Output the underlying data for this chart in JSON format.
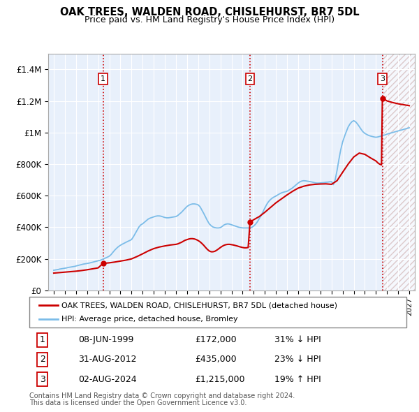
{
  "title": "OAK TREES, WALDEN ROAD, CHISLEHURST, BR7 5DL",
  "subtitle": "Price paid vs. HM Land Registry's House Price Index (HPI)",
  "hpi_label": "HPI: Average price, detached house, Bromley",
  "price_label": "OAK TREES, WALDEN ROAD, CHISLEHURST, BR7 5DL (detached house)",
  "footer1": "Contains HM Land Registry data © Crown copyright and database right 2024.",
  "footer2": "This data is licensed under the Open Government Licence v3.0.",
  "hpi_color": "#7bbce8",
  "price_color": "#cc0000",
  "plot_bg_color": "#e8f0fb",
  "ylim": [
    0,
    1500000
  ],
  "yticks": [
    0,
    200000,
    400000,
    600000,
    800000,
    1000000,
    1200000,
    1400000
  ],
  "ytick_labels": [
    "£0",
    "£200K",
    "£400K",
    "£600K",
    "£800K",
    "£1M",
    "£1.2M",
    "£1.4M"
  ],
  "transactions": [
    {
      "num": 1,
      "date": "08-JUN-1999",
      "date_val": 1999.44,
      "price": 172000,
      "pct": "31%",
      "dir": "↓"
    },
    {
      "num": 2,
      "date": "31-AUG-2012",
      "date_val": 2012.67,
      "price": 435000,
      "pct": "23%",
      "dir": "↓"
    },
    {
      "num": 3,
      "date": "02-AUG-2024",
      "date_val": 2024.58,
      "price": 1215000,
      "pct": "19%",
      "dir": "↑"
    }
  ],
  "hpi_data_x": [
    1995.0,
    1995.08,
    1995.17,
    1995.25,
    1995.33,
    1995.42,
    1995.5,
    1995.58,
    1995.67,
    1995.75,
    1995.83,
    1995.92,
    1996.0,
    1996.08,
    1996.17,
    1996.25,
    1996.33,
    1996.42,
    1996.5,
    1996.58,
    1996.67,
    1996.75,
    1996.83,
    1996.92,
    1997.0,
    1997.17,
    1997.33,
    1997.5,
    1997.67,
    1997.83,
    1998.0,
    1998.17,
    1998.33,
    1998.5,
    1998.67,
    1998.83,
    1999.0,
    1999.17,
    1999.33,
    1999.5,
    1999.67,
    1999.83,
    2000.0,
    2000.17,
    2000.33,
    2000.5,
    2000.67,
    2000.83,
    2001.0,
    2001.17,
    2001.33,
    2001.5,
    2001.67,
    2001.83,
    2002.0,
    2002.17,
    2002.33,
    2002.5,
    2002.67,
    2002.83,
    2003.0,
    2003.17,
    2003.33,
    2003.5,
    2003.67,
    2003.83,
    2004.0,
    2004.17,
    2004.33,
    2004.5,
    2004.67,
    2004.83,
    2005.0,
    2005.17,
    2005.33,
    2005.5,
    2005.67,
    2005.83,
    2006.0,
    2006.17,
    2006.33,
    2006.5,
    2006.67,
    2006.83,
    2007.0,
    2007.17,
    2007.33,
    2007.5,
    2007.67,
    2007.83,
    2008.0,
    2008.17,
    2008.33,
    2008.5,
    2008.67,
    2008.83,
    2009.0,
    2009.17,
    2009.33,
    2009.5,
    2009.67,
    2009.83,
    2010.0,
    2010.17,
    2010.33,
    2010.5,
    2010.67,
    2010.83,
    2011.0,
    2011.17,
    2011.33,
    2011.5,
    2011.67,
    2011.83,
    2012.0,
    2012.17,
    2012.33,
    2012.5,
    2012.67,
    2012.83,
    2013.0,
    2013.17,
    2013.33,
    2013.5,
    2013.67,
    2013.83,
    2014.0,
    2014.17,
    2014.33,
    2014.5,
    2014.67,
    2014.83,
    2015.0,
    2015.17,
    2015.33,
    2015.5,
    2015.67,
    2015.83,
    2016.0,
    2016.17,
    2016.33,
    2016.5,
    2016.67,
    2016.83,
    2017.0,
    2017.17,
    2017.33,
    2017.5,
    2017.67,
    2017.83,
    2018.0,
    2018.17,
    2018.33,
    2018.5,
    2018.67,
    2018.83,
    2019.0,
    2019.17,
    2019.33,
    2019.5,
    2019.67,
    2019.83,
    2020.0,
    2020.17,
    2020.33,
    2020.5,
    2020.67,
    2020.83,
    2021.0,
    2021.17,
    2021.33,
    2021.5,
    2021.67,
    2021.83,
    2022.0,
    2022.17,
    2022.33,
    2022.5,
    2022.67,
    2022.83,
    2023.0,
    2023.17,
    2023.33,
    2023.5,
    2023.67,
    2023.83,
    2024.0,
    2024.17,
    2024.33,
    2024.5,
    2024.58,
    2024.67,
    2024.83,
    2025.0,
    2025.5,
    2026.0,
    2026.5,
    2027.0
  ],
  "hpi_data_y": [
    128000,
    129000,
    130000,
    131000,
    132000,
    133000,
    135000,
    136000,
    137000,
    138000,
    139000,
    140000,
    141000,
    142000,
    143000,
    145000,
    146000,
    147000,
    148000,
    149000,
    150000,
    151000,
    152000,
    153000,
    155000,
    158000,
    161000,
    164000,
    167000,
    169000,
    171000,
    173000,
    176000,
    179000,
    182000,
    185000,
    188000,
    191000,
    195000,
    200000,
    206000,
    211000,
    217000,
    228000,
    242000,
    256000,
    268000,
    278000,
    286000,
    293000,
    299000,
    305000,
    311000,
    316000,
    322000,
    340000,
    360000,
    382000,
    402000,
    415000,
    422000,
    432000,
    442000,
    452000,
    458000,
    462000,
    466000,
    470000,
    472000,
    472000,
    470000,
    466000,
    462000,
    460000,
    460000,
    462000,
    464000,
    466000,
    468000,
    475000,
    485000,
    495000,
    508000,
    520000,
    532000,
    540000,
    545000,
    548000,
    548000,
    546000,
    542000,
    530000,
    510000,
    488000,
    464000,
    442000,
    422000,
    410000,
    402000,
    398000,
    396000,
    396000,
    398000,
    406000,
    415000,
    420000,
    422000,
    420000,
    416000,
    412000,
    408000,
    404000,
    400000,
    398000,
    396000,
    396000,
    396000,
    396000,
    396000,
    400000,
    408000,
    420000,
    435000,
    455000,
    475000,
    498000,
    522000,
    545000,
    562000,
    575000,
    585000,
    592000,
    598000,
    605000,
    612000,
    618000,
    622000,
    625000,
    628000,
    635000,
    642000,
    650000,
    660000,
    670000,
    680000,
    688000,
    693000,
    695000,
    694000,
    692000,
    690000,
    688000,
    685000,
    682000,
    680000,
    680000,
    681000,
    682000,
    683000,
    685000,
    686000,
    688000,
    689000,
    670000,
    700000,
    760000,
    830000,
    890000,
    940000,
    975000,
    1005000,
    1035000,
    1055000,
    1068000,
    1075000,
    1068000,
    1055000,
    1038000,
    1020000,
    1005000,
    995000,
    988000,
    982000,
    978000,
    975000,
    972000,
    970000,
    972000,
    975000,
    978000,
    980000,
    982000,
    985000,
    990000,
    1000000,
    1010000,
    1020000,
    1030000
  ],
  "price_data_x": [
    1995.0,
    1995.5,
    1996.0,
    1996.5,
    1997.0,
    1997.5,
    1998.0,
    1998.5,
    1999.0,
    1999.44,
    1999.5,
    2000.0,
    2000.5,
    2001.0,
    2001.5,
    2002.0,
    2002.5,
    2003.0,
    2003.5,
    2004.0,
    2004.5,
    2005.0,
    2005.5,
    2006.0,
    2006.17,
    2006.33,
    2006.5,
    2006.67,
    2006.83,
    2007.0,
    2007.17,
    2007.33,
    2007.5,
    2007.67,
    2007.83,
    2008.0,
    2008.17,
    2008.33,
    2008.5,
    2008.67,
    2008.83,
    2009.0,
    2009.17,
    2009.33,
    2009.5,
    2009.67,
    2009.83,
    2010.0,
    2010.17,
    2010.33,
    2010.5,
    2010.67,
    2010.83,
    2011.0,
    2011.17,
    2011.33,
    2011.5,
    2011.67,
    2011.83,
    2012.0,
    2012.17,
    2012.33,
    2012.5,
    2012.67,
    2012.7,
    2013.0,
    2013.5,
    2014.0,
    2014.5,
    2015.0,
    2015.5,
    2016.0,
    2016.5,
    2017.0,
    2017.5,
    2018.0,
    2018.5,
    2019.0,
    2019.5,
    2020.0,
    2020.5,
    2021.0,
    2021.5,
    2022.0,
    2022.5,
    2023.0,
    2023.5,
    2024.0,
    2024.17,
    2024.33,
    2024.5,
    2024.58,
    2024.67,
    2025.0,
    2025.5,
    2026.0,
    2026.5,
    2027.0
  ],
  "price_data_y": [
    110000,
    113000,
    116000,
    119000,
    122000,
    126000,
    131000,
    137000,
    143000,
    172000,
    172000,
    175000,
    180000,
    186000,
    192000,
    200000,
    215000,
    232000,
    250000,
    265000,
    275000,
    282000,
    288000,
    292000,
    295000,
    300000,
    305000,
    312000,
    318000,
    322000,
    326000,
    328000,
    328000,
    326000,
    322000,
    316000,
    308000,
    298000,
    286000,
    272000,
    260000,
    250000,
    245000,
    245000,
    248000,
    255000,
    263000,
    272000,
    280000,
    286000,
    290000,
    292000,
    292000,
    290000,
    288000,
    285000,
    282000,
    278000,
    275000,
    272000,
    270000,
    270000,
    272000,
    435000,
    435000,
    448000,
    468000,
    495000,
    525000,
    555000,
    580000,
    605000,
    628000,
    648000,
    660000,
    668000,
    672000,
    674000,
    675000,
    672000,
    695000,
    748000,
    800000,
    845000,
    870000,
    862000,
    840000,
    820000,
    808000,
    800000,
    795000,
    1215000,
    1215000,
    1200000,
    1190000,
    1182000,
    1176000,
    1170000
  ],
  "xmin": 1994.5,
  "xmax": 2027.5,
  "future_start": 2024.67,
  "xtick_years": [
    1995,
    1996,
    1997,
    1998,
    1999,
    2000,
    2001,
    2002,
    2003,
    2004,
    2005,
    2006,
    2007,
    2008,
    2009,
    2010,
    2011,
    2012,
    2013,
    2014,
    2015,
    2016,
    2017,
    2018,
    2019,
    2020,
    2021,
    2022,
    2023,
    2024,
    2025,
    2026,
    2027
  ]
}
